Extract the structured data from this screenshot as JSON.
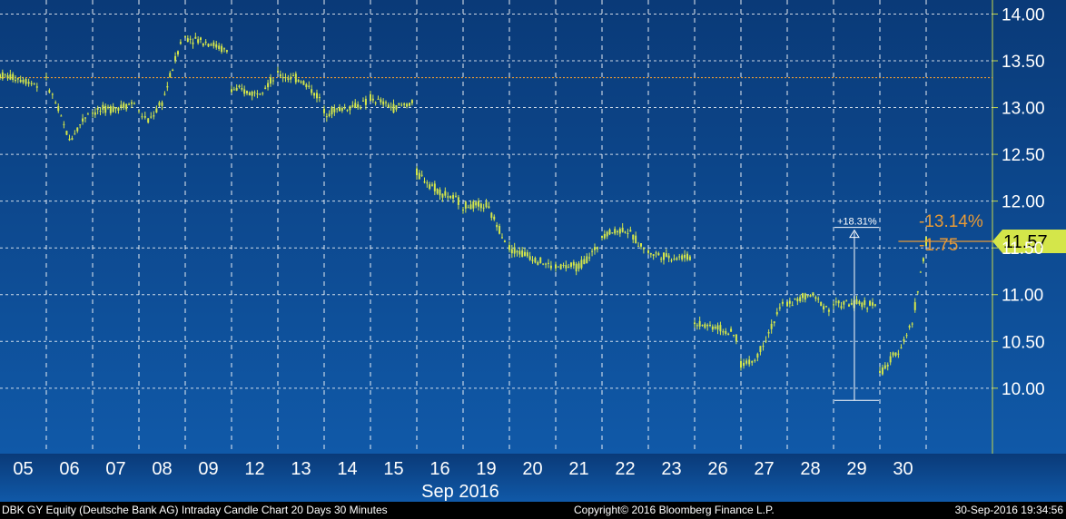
{
  "chart_data": {
    "type": "candlestick",
    "month_label": "Sep 2016",
    "x_tick_labels": [
      "05",
      "06",
      "07",
      "08",
      "09",
      "12",
      "13",
      "14",
      "15",
      "16",
      "19",
      "20",
      "21",
      "22",
      "23",
      "26",
      "27",
      "28",
      "29",
      "30"
    ],
    "y_tick_labels": [
      "10.00",
      "10.50",
      "11.00",
      "11.50",
      "12.00",
      "12.50",
      "13.00",
      "13.50",
      "14.00"
    ],
    "ylim": [
      9.3,
      14.15
    ],
    "reference_level": 13.32,
    "last_price": "11.57",
    "change_abs": "-1.75",
    "change_pct": "-13.14%",
    "range_label": "+18.31%",
    "range_low": 9.87,
    "range_high": 11.67,
    "grid": true,
    "colors": {
      "background": "#0b3d7c",
      "candles": "#d4e64a",
      "grid": "#ffffff",
      "reference_line": "#e89a36",
      "annotation_text": "#e89a36",
      "price_box": "#d4e64a"
    },
    "series_points": [
      [
        "05",
        0.0,
        13.35
      ],
      [
        "05",
        0.5,
        13.3
      ],
      [
        "05",
        0.8,
        13.25
      ],
      [
        "06",
        0.0,
        13.28
      ],
      [
        "06",
        0.2,
        13.05
      ],
      [
        "06",
        0.5,
        12.65
      ],
      [
        "06",
        0.9,
        12.95
      ],
      [
        "07",
        0.0,
        12.95
      ],
      [
        "07",
        0.5,
        13.0
      ],
      [
        "07",
        0.9,
        13.05
      ],
      [
        "08",
        0.0,
        12.95
      ],
      [
        "08",
        0.2,
        12.85
      ],
      [
        "08",
        0.5,
        13.05
      ],
      [
        "08",
        0.9,
        13.7
      ],
      [
        "09",
        0.0,
        13.75
      ],
      [
        "09",
        0.5,
        13.7
      ],
      [
        "09",
        0.9,
        13.6
      ],
      [
        "12",
        0.0,
        13.2
      ],
      [
        "12",
        0.5,
        13.15
      ],
      [
        "12",
        0.9,
        13.3
      ],
      [
        "13",
        0.0,
        13.35
      ],
      [
        "13",
        0.5,
        13.3
      ],
      [
        "13",
        0.9,
        13.1
      ],
      [
        "14",
        0.0,
        12.95
      ],
      [
        "14",
        0.5,
        13.0
      ],
      [
        "14",
        0.9,
        13.05
      ],
      [
        "15",
        0.0,
        13.1
      ],
      [
        "15",
        0.5,
        13.0
      ],
      [
        "15",
        0.9,
        13.05
      ],
      [
        "16",
        0.0,
        12.3
      ],
      [
        "16",
        0.5,
        12.1
      ],
      [
        "16",
        0.9,
        12.0
      ],
      [
        "19",
        0.0,
        11.95
      ],
      [
        "19",
        0.5,
        11.95
      ],
      [
        "19",
        0.9,
        11.6
      ],
      [
        "20",
        0.0,
        11.5
      ],
      [
        "20",
        0.5,
        11.4
      ],
      [
        "20",
        0.9,
        11.3
      ],
      [
        "21",
        0.0,
        11.3
      ],
      [
        "21",
        0.5,
        11.3
      ],
      [
        "21",
        0.9,
        11.5
      ],
      [
        "22",
        0.0,
        11.65
      ],
      [
        "22",
        0.5,
        11.7
      ],
      [
        "22",
        0.9,
        11.5
      ],
      [
        "23",
        0.0,
        11.45
      ],
      [
        "23",
        0.5,
        11.4
      ],
      [
        "23",
        0.9,
        11.4
      ],
      [
        "26",
        0.0,
        10.7
      ],
      [
        "26",
        0.5,
        10.65
      ],
      [
        "26",
        0.9,
        10.55
      ],
      [
        "27",
        0.0,
        10.25
      ],
      [
        "27",
        0.3,
        10.3
      ],
      [
        "27",
        0.6,
        10.6
      ],
      [
        "27",
        0.9,
        10.9
      ],
      [
        "28",
        0.0,
        10.9
      ],
      [
        "28",
        0.5,
        11.0
      ],
      [
        "28",
        0.9,
        10.85
      ],
      [
        "29",
        0.0,
        10.9
      ],
      [
        "29",
        0.5,
        10.9
      ],
      [
        "29",
        0.9,
        10.9
      ],
      [
        "30",
        0.0,
        10.15
      ],
      [
        "30",
        0.4,
        10.4
      ],
      [
        "30",
        0.7,
        10.7
      ],
      [
        "30",
        1.0,
        11.57
      ]
    ]
  },
  "footer": {
    "left": "DBK GY Equity (Deutsche Bank AG) Intraday Candle Chart 20 Days 30 Minutes",
    "center": "Copyright© 2016 Bloomberg Finance L.P.",
    "right": "30-Sep-2016 19:34:56"
  }
}
